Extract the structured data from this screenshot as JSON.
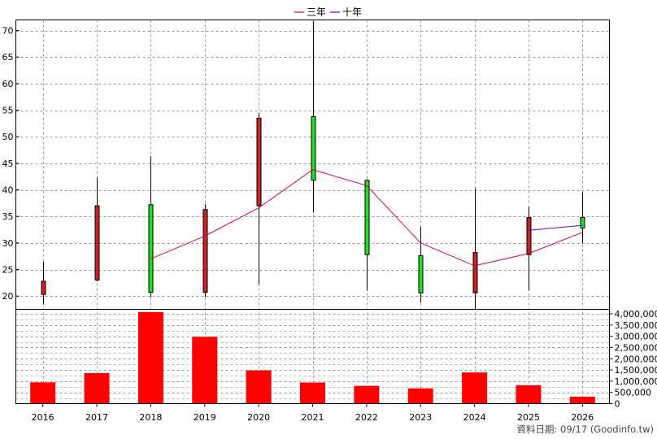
{
  "legend": [
    {
      "label": "三年",
      "color": "#cc0066"
    },
    {
      "label": "十年",
      "color": "#6600cc"
    }
  ],
  "footer": "資料日期: 09/17  (Goodinfo.tw)",
  "chart_data": {
    "type": "candlestick+bar",
    "categories": [
      "2016",
      "2017",
      "2018",
      "2019",
      "2020",
      "2021",
      "2022",
      "2023",
      "2024",
      "2025",
      "2026"
    ],
    "price_axis": {
      "ylim": [
        17.5,
        72
      ],
      "ticks": [
        20,
        25,
        30,
        35,
        40,
        45,
        50,
        55,
        60,
        65,
        70
      ]
    },
    "volume_axis": {
      "ylim": [
        0,
        4200000
      ],
      "ticks": [
        0,
        500000,
        1000000,
        1500000,
        2000000,
        2500000,
        3000000,
        3500000,
        4000000
      ],
      "tick_labels": [
        "0",
        "500,000",
        "1,000,000",
        "1,500,000",
        "2,000,000",
        "2,500,000",
        "3,000,000",
        "3,500,000",
        "4,000,000"
      ]
    },
    "candles": [
      {
        "open": 20.3,
        "close": 22.8,
        "high": 26.5,
        "low": 18.5
      },
      {
        "open": 23.0,
        "close": 37.0,
        "high": 42.3,
        "low": 22.8
      },
      {
        "open": 37.2,
        "close": 20.7,
        "high": 46.3,
        "low": 19.8
      },
      {
        "open": 20.7,
        "close": 36.3,
        "high": 37.3,
        "low": 19.8
      },
      {
        "open": 37.0,
        "close": 53.5,
        "high": 54.5,
        "low": 22.2
      },
      {
        "open": 53.8,
        "close": 41.8,
        "high": 71.8,
        "low": 35.7
      },
      {
        "open": 41.8,
        "close": 27.8,
        "high": 42.0,
        "low": 21.0
      },
      {
        "open": 27.6,
        "close": 20.6,
        "high": 33.0,
        "low": 18.8
      },
      {
        "open": 20.6,
        "close": 28.2,
        "high": 40.3,
        "low": 17.6
      },
      {
        "open": 27.8,
        "close": 34.8,
        "high": 36.8,
        "low": 21.0
      },
      {
        "open": 34.8,
        "close": 32.8,
        "high": 39.5,
        "low": 30.0
      }
    ],
    "series": [
      {
        "name": "三年",
        "color": "#cc0066",
        "values": [
          null,
          null,
          27.0,
          31.3,
          36.6,
          43.8,
          40.8,
          30.0,
          25.7,
          28.0,
          32.0
        ]
      },
      {
        "name": "十年",
        "color": "#6600cc",
        "values": [
          null,
          null,
          null,
          null,
          null,
          null,
          null,
          null,
          null,
          32.4,
          33.3
        ]
      }
    ],
    "volume": [
      950000,
      1360000,
      4080000,
      2980000,
      1480000,
      940000,
      790000,
      680000,
      1390000,
      820000,
      310000
    ]
  }
}
